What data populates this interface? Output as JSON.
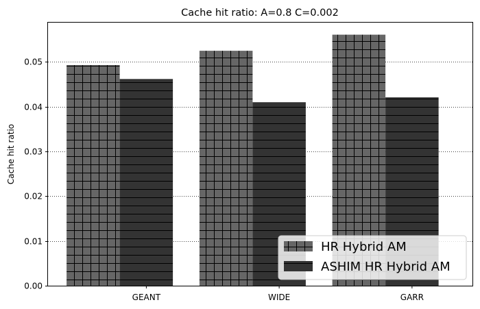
{
  "chart_data": {
    "type": "bar",
    "title": "Cache hit ratio: A=0.8 C=0.002",
    "xlabel": "",
    "ylabel": "Cache hit ratio",
    "categories": [
      "GEANT",
      "WIDE",
      "GARR"
    ],
    "series": [
      {
        "name": "HR Hybrid AM",
        "values": [
          0.0493,
          0.0525,
          0.0561
        ],
        "color": "#666666",
        "hatch": "grid"
      },
      {
        "name": "ASHIM HR Hybrid AM",
        "values": [
          0.0462,
          0.041,
          0.0421
        ],
        "color": "#333333",
        "hatch": "horizontal"
      }
    ],
    "ylim": [
      0,
      0.0588
    ],
    "yticks": [
      "0.00",
      "0.01",
      "0.02",
      "0.03",
      "0.04",
      "0.05"
    ],
    "ytick_values": [
      0,
      0.01,
      0.02,
      0.03,
      0.04,
      0.05
    ],
    "grid": "y-dotted",
    "legend_position": "bottom-right"
  }
}
